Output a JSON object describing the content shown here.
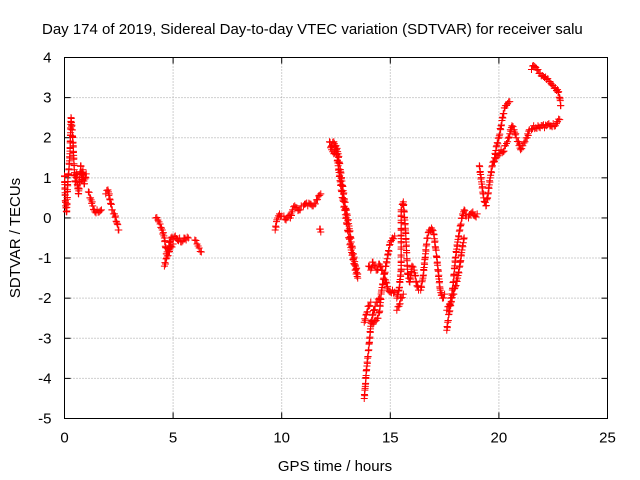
{
  "chart_data": {
    "type": "scatter",
    "title": "Day 174 of 2019, Sidereal Day-to-day VTEC variation (SDTVAR) for receiver salu",
    "xlabel": "GPS time / hours",
    "ylabel": "SDTVAR / TECUs",
    "xlim": [
      0,
      25
    ],
    "ylim": [
      -5,
      4
    ],
    "xticks": [
      "0",
      "5",
      "10",
      "15",
      "20",
      "25"
    ],
    "yticks": [
      "-5",
      "-4",
      "-3",
      "-2",
      "-1",
      "0",
      "1",
      "2",
      "3",
      "4"
    ],
    "grid": true,
    "marker": "+",
    "marker_color": "#ff0000",
    "series": [
      {
        "name": "SDTVAR",
        "segments": [
          [
            [
              0.0,
              1.05
            ],
            [
              0.05,
              0.3
            ],
            [
              0.1,
              0.15
            ],
            [
              0.15,
              0.9
            ],
            [
              0.2,
              1.2
            ],
            [
              0.25,
              1.6
            ],
            [
              0.3,
              2.5
            ],
            [
              0.35,
              2.2
            ],
            [
              0.4,
              1.8
            ],
            [
              0.45,
              1.2
            ],
            [
              0.5,
              0.9
            ],
            [
              0.55,
              1.1
            ],
            [
              0.6,
              0.8
            ],
            [
              0.65,
              0.6
            ],
            [
              0.7,
              1.0
            ],
            [
              0.75,
              1.3
            ],
            [
              0.8,
              0.95
            ],
            [
              0.85,
              1.2
            ],
            [
              0.9,
              0.85
            ],
            [
              1.0,
              1.1
            ]
          ],
          [
            [
              1.1,
              0.65
            ],
            [
              1.2,
              0.5
            ],
            [
              1.3,
              0.3
            ],
            [
              1.4,
              0.15
            ],
            [
              1.5,
              0.2
            ],
            [
              1.6,
              0.15
            ],
            [
              1.7,
              0.2
            ]
          ],
          [
            [
              1.9,
              0.6
            ],
            [
              2.0,
              0.7
            ],
            [
              2.1,
              0.45
            ],
            [
              2.2,
              0.2
            ],
            [
              2.3,
              0.1
            ],
            [
              2.4,
              -0.1
            ],
            [
              2.5,
              -0.3
            ]
          ],
          [
            [
              4.2,
              0.0
            ],
            [
              4.3,
              -0.05
            ],
            [
              4.4,
              -0.15
            ],
            [
              4.5,
              -0.3
            ],
            [
              4.6,
              -0.5
            ],
            [
              4.7,
              -0.9
            ],
            [
              4.8,
              -0.7
            ],
            [
              4.9,
              -0.5
            ],
            [
              5.0,
              -0.55
            ],
            [
              5.1,
              -0.45
            ],
            [
              5.2,
              -0.55
            ],
            [
              5.3,
              -0.5
            ],
            [
              5.4,
              -0.6
            ],
            [
              5.5,
              -0.5
            ],
            [
              5.6,
              -0.55
            ],
            [
              5.7,
              -0.5
            ]
          ],
          [
            [
              4.6,
              -1.2
            ],
            [
              4.7,
              -1.0
            ],
            [
              4.8,
              -0.85
            ],
            [
              4.9,
              -0.7
            ],
            [
              5.0,
              -0.65
            ]
          ],
          [
            [
              6.0,
              -0.55
            ],
            [
              6.1,
              -0.65
            ],
            [
              6.2,
              -0.75
            ],
            [
              6.3,
              -0.85
            ]
          ],
          [
            [
              9.7,
              -0.3
            ],
            [
              9.8,
              0.0
            ],
            [
              9.9,
              0.1
            ],
            [
              10.0,
              0.05
            ],
            [
              10.1,
              0.05
            ],
            [
              10.2,
              -0.05
            ],
            [
              10.3,
              0.05
            ],
            [
              10.4,
              0.0
            ],
            [
              10.5,
              0.2
            ],
            [
              10.6,
              0.3
            ],
            [
              10.7,
              0.25
            ],
            [
              10.8,
              0.2
            ],
            [
              10.9,
              0.3
            ],
            [
              11.0,
              0.3
            ],
            [
              11.1,
              0.35
            ],
            [
              11.2,
              0.3
            ],
            [
              11.3,
              0.35
            ],
            [
              11.4,
              0.3
            ],
            [
              11.5,
              0.35
            ],
            [
              11.6,
              0.45
            ],
            [
              11.7,
              0.55
            ],
            [
              11.8,
              0.6
            ]
          ],
          [
            [
              11.75,
              -0.28
            ],
            [
              11.8,
              -0.35
            ]
          ],
          [
            [
              12.2,
              1.9
            ],
            [
              12.3,
              1.7
            ],
            [
              12.4,
              1.6
            ],
            [
              12.5,
              1.8
            ],
            [
              12.6,
              1.6
            ],
            [
              12.7,
              1.2
            ],
            [
              12.8,
              0.8
            ],
            [
              12.9,
              0.4
            ],
            [
              13.0,
              0.1
            ],
            [
              13.1,
              -0.2
            ],
            [
              13.2,
              -0.6
            ],
            [
              13.3,
              -0.9
            ],
            [
              13.4,
              -1.2
            ],
            [
              13.5,
              -1.4
            ]
          ],
          [
            [
              12.3,
              1.8
            ],
            [
              12.4,
              1.9
            ],
            [
              12.5,
              1.7
            ],
            [
              12.6,
              1.3
            ],
            [
              12.7,
              0.9
            ],
            [
              12.8,
              0.5
            ],
            [
              12.9,
              0.2
            ],
            [
              13.0,
              -0.15
            ],
            [
              13.1,
              -0.5
            ],
            [
              13.2,
              -0.8
            ],
            [
              13.3,
              -1.05
            ],
            [
              13.4,
              -1.3
            ],
            [
              13.5,
              -1.5
            ]
          ],
          [
            [
              13.8,
              -4.5
            ],
            [
              13.85,
              -4.2
            ],
            [
              13.9,
              -3.8
            ],
            [
              14.0,
              -3.3
            ],
            [
              14.05,
              -3.0
            ],
            [
              14.1,
              -2.7
            ],
            [
              14.2,
              -2.4
            ],
            [
              14.3,
              -2.2
            ],
            [
              14.4,
              -2.1
            ],
            [
              14.5,
              -2.0
            ]
          ],
          [
            [
              13.8,
              -2.6
            ],
            [
              13.9,
              -2.4
            ],
            [
              14.0,
              -2.2
            ],
            [
              14.1,
              -2.1
            ]
          ],
          [
            [
              14.1,
              -2.6
            ],
            [
              14.2,
              -2.65
            ],
            [
              14.3,
              -2.55
            ],
            [
              14.4,
              -2.5
            ],
            [
              14.5,
              -2.35
            ],
            [
              14.6,
              -1.8
            ],
            [
              14.7,
              -1.5
            ],
            [
              14.8,
              -1.2
            ],
            [
              14.9,
              -0.9
            ],
            [
              15.0,
              -0.6
            ],
            [
              15.1,
              -0.5
            ],
            [
              15.2,
              -0.45
            ]
          ],
          [
            [
              14.0,
              -1.2
            ],
            [
              14.1,
              -1.3
            ],
            [
              14.2,
              -1.1
            ],
            [
              14.3,
              -1.2
            ],
            [
              14.4,
              -1.3
            ],
            [
              14.5,
              -1.15
            ],
            [
              14.6,
              -1.3
            ],
            [
              14.7,
              -1.4
            ],
            [
              14.8,
              -1.6
            ],
            [
              14.9,
              -1.8
            ],
            [
              15.0,
              -1.85
            ],
            [
              15.1,
              -1.8
            ],
            [
              15.2,
              -1.85
            ]
          ],
          [
            [
              15.3,
              -2.0
            ],
            [
              15.4,
              -1.8
            ],
            [
              15.5,
              -1.3
            ],
            [
              15.5,
              0.2
            ],
            [
              15.6,
              0.4
            ],
            [
              15.7,
              -0.3
            ],
            [
              15.8,
              -1.4
            ],
            [
              15.9,
              -1.6
            ],
            [
              16.0,
              -1.2
            ],
            [
              16.1,
              -1.3
            ],
            [
              16.2,
              -1.6
            ],
            [
              16.3,
              -1.8
            ]
          ],
          [
            [
              15.3,
              -2.3
            ],
            [
              15.4,
              -2.2
            ],
            [
              15.5,
              -2.0
            ],
            [
              15.6,
              -1.9
            ]
          ],
          [
            [
              16.4,
              -1.8
            ],
            [
              16.5,
              -1.5
            ],
            [
              16.6,
              -1.0
            ],
            [
              16.7,
              -0.5
            ],
            [
              16.8,
              -0.3
            ],
            [
              16.9,
              -0.25
            ],
            [
              17.0,
              -0.4
            ],
            [
              17.1,
              -0.8
            ],
            [
              17.2,
              -1.3
            ],
            [
              17.3,
              -1.8
            ],
            [
              17.4,
              -2.0
            ],
            [
              17.5,
              -1.9
            ]
          ],
          [
            [
              17.6,
              -2.8
            ],
            [
              17.7,
              -2.4
            ],
            [
              17.8,
              -2.1
            ],
            [
              17.9,
              -1.6
            ],
            [
              18.0,
              -1.0
            ],
            [
              18.1,
              -0.6
            ],
            [
              18.2,
              -0.3
            ],
            [
              18.3,
              0.0
            ],
            [
              18.4,
              0.2
            ],
            [
              18.5,
              0.05
            ]
          ],
          [
            [
              17.6,
              -2.3
            ],
            [
              17.7,
              -2.2
            ],
            [
              17.8,
              -2.0
            ],
            [
              17.9,
              -1.9
            ],
            [
              18.0,
              -1.7
            ],
            [
              18.1,
              -1.5
            ],
            [
              18.2,
              -1.2
            ],
            [
              18.3,
              -0.8
            ],
            [
              18.4,
              -0.5
            ]
          ],
          [
            [
              18.6,
              0.0
            ],
            [
              18.7,
              0.1
            ],
            [
              18.8,
              0.15
            ],
            [
              18.9,
              0.05
            ],
            [
              19.0,
              0.1
            ]
          ],
          [
            [
              19.1,
              1.3
            ],
            [
              19.2,
              0.9
            ],
            [
              19.3,
              0.5
            ],
            [
              19.4,
              0.3
            ],
            [
              19.5,
              0.6
            ],
            [
              19.6,
              1.0
            ],
            [
              19.7,
              1.3
            ],
            [
              19.8,
              1.5
            ],
            [
              19.9,
              1.8
            ],
            [
              20.0,
              2.0
            ],
            [
              20.1,
              2.3
            ],
            [
              20.2,
              2.6
            ],
            [
              20.3,
              2.8
            ],
            [
              20.4,
              2.85
            ],
            [
              20.5,
              2.9
            ]
          ],
          [
            [
              19.8,
              1.4
            ],
            [
              19.9,
              1.5
            ],
            [
              20.0,
              1.6
            ],
            [
              20.1,
              1.7
            ],
            [
              20.2,
              1.65
            ],
            [
              20.3,
              1.8
            ],
            [
              20.4,
              1.9
            ],
            [
              20.5,
              2.1
            ],
            [
              20.6,
              2.3
            ],
            [
              20.7,
              2.2
            ],
            [
              20.8,
              2.0
            ],
            [
              20.9,
              1.9
            ],
            [
              21.0,
              1.7
            ],
            [
              21.1,
              1.8
            ],
            [
              21.2,
              1.9
            ],
            [
              21.3,
              2.0
            ],
            [
              21.4,
              2.2
            ],
            [
              21.5,
              2.2
            ],
            [
              21.6,
              2.3
            ],
            [
              21.7,
              2.25
            ],
            [
              21.8,
              2.3
            ],
            [
              21.9,
              2.25
            ],
            [
              22.0,
              2.3
            ],
            [
              22.1,
              2.25
            ],
            [
              22.2,
              2.3
            ],
            [
              22.3,
              2.35
            ],
            [
              22.4,
              2.3
            ],
            [
              22.5,
              2.35
            ],
            [
              22.6,
              2.3
            ],
            [
              22.7,
              2.4
            ],
            [
              22.8,
              2.45
            ]
          ],
          [
            [
              21.5,
              3.7
            ],
            [
              21.6,
              3.8
            ],
            [
              21.7,
              3.75
            ],
            [
              21.8,
              3.7
            ],
            [
              21.9,
              3.6
            ],
            [
              22.0,
              3.55
            ],
            [
              22.1,
              3.5
            ],
            [
              22.2,
              3.45
            ],
            [
              22.3,
              3.4
            ],
            [
              22.4,
              3.35
            ],
            [
              22.5,
              3.3
            ],
            [
              22.6,
              3.25
            ],
            [
              22.7,
              3.2
            ],
            [
              22.8,
              3.0
            ],
            [
              22.85,
              2.8
            ]
          ]
        ]
      }
    ]
  }
}
